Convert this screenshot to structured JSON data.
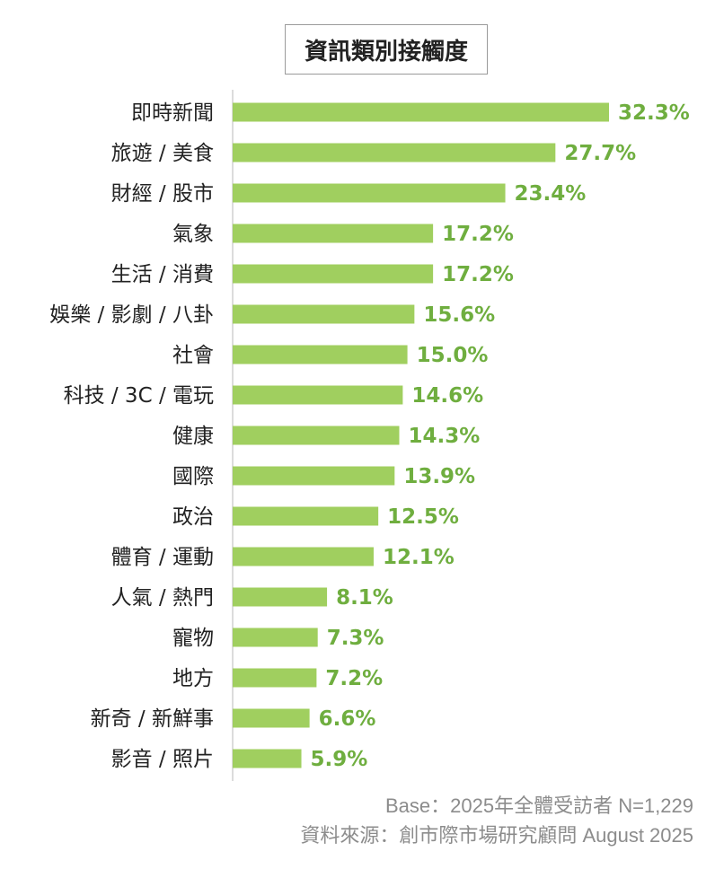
{
  "chart_data": {
    "type": "bar",
    "orientation": "horizontal",
    "title": "資訊類別接觸度",
    "categories": [
      "即時新聞",
      "旅遊 / 美食",
      "財經 / 股市",
      "氣象",
      "生活 / 消費",
      "娛樂 / 影劇 / 八卦",
      "社會",
      "科技 / 3C / 電玩",
      "健康",
      "國際",
      "政治",
      "體育 / 運動",
      "人氣 / 熱門",
      "寵物",
      "地方",
      "新奇 / 新鮮事",
      "影音 / 照片"
    ],
    "values": [
      32.3,
      27.7,
      23.4,
      17.2,
      17.2,
      15.6,
      15.0,
      14.6,
      14.3,
      13.9,
      12.5,
      12.1,
      8.1,
      7.3,
      7.2,
      6.6,
      5.9
    ],
    "value_labels": [
      "32.3%",
      "27.7%",
      "23.4%",
      "17.2%",
      "17.2%",
      "15.6%",
      "15.0%",
      "14.6%",
      "14.3%",
      "13.9%",
      "12.5%",
      "12.1%",
      "8.1%",
      "7.3%",
      "7.2%",
      "6.6%",
      "5.9%"
    ],
    "unit": "%",
    "xlim": [
      0,
      37
    ],
    "grid": false,
    "bar_color": "#a0cf5f",
    "label_color": "#6fae3f"
  },
  "footer": {
    "base": "Base：2025年全體受訪者 N=1,229",
    "source": "資料來源：創市際市場研究顧問 August 2025"
  }
}
